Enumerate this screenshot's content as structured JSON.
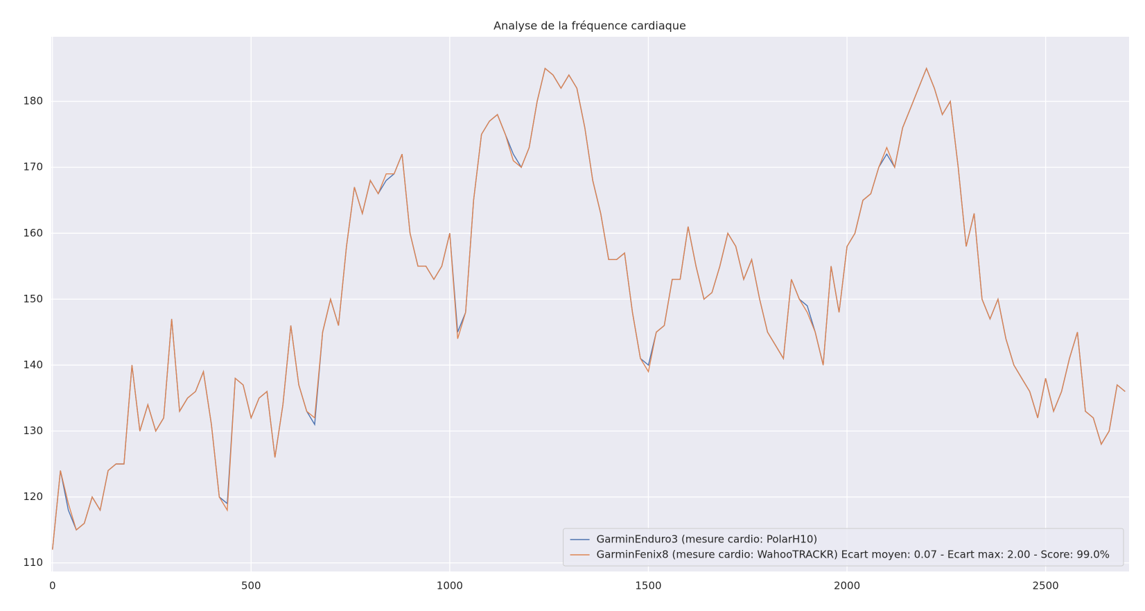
{
  "chart_data": {
    "type": "line",
    "title": "Analyse de la fréquence cardiaque",
    "x": [
      0,
      20,
      40,
      60,
      80,
      100,
      120,
      140,
      160,
      180,
      200,
      220,
      240,
      260,
      280,
      300,
      320,
      340,
      360,
      380,
      400,
      420,
      440,
      460,
      480,
      500,
      520,
      540,
      560,
      580,
      600,
      620,
      640,
      660,
      680,
      700,
      720,
      740,
      760,
      780,
      800,
      820,
      840,
      860,
      880,
      900,
      920,
      940,
      960,
      980,
      1000,
      1020,
      1040,
      1060,
      1080,
      1100,
      1120,
      1140,
      1160,
      1180,
      1200,
      1220,
      1240,
      1260,
      1280,
      1300,
      1320,
      1340,
      1360,
      1380,
      1400,
      1420,
      1440,
      1460,
      1480,
      1500,
      1520,
      1540,
      1560,
      1580,
      1600,
      1620,
      1640,
      1660,
      1680,
      1700,
      1720,
      1740,
      1760,
      1780,
      1800,
      1820,
      1840,
      1860,
      1880,
      1900,
      1920,
      1940,
      1960,
      1980,
      2000,
      2020,
      2040,
      2060,
      2080,
      2100,
      2120,
      2140,
      2160,
      2180,
      2200,
      2220,
      2240,
      2260,
      2280,
      2300,
      2320,
      2340,
      2360,
      2380,
      2400,
      2420,
      2440,
      2460,
      2480,
      2500,
      2520,
      2540,
      2560,
      2580,
      2600,
      2620,
      2640,
      2660,
      2680,
      2700
    ],
    "series": [
      {
        "name": "GarminEnduro3 (mesure cardio: PolarH10)",
        "color": "#4c72b0",
        "values": [
          112,
          124,
          118,
          115,
          116,
          120,
          118,
          124,
          125,
          125,
          140,
          130,
          134,
          130,
          132,
          147,
          133,
          135,
          136,
          139,
          131,
          120,
          119,
          138,
          137,
          132,
          135,
          136,
          126,
          134,
          146,
          137,
          133,
          131,
          145,
          150,
          146,
          158,
          167,
          163,
          168,
          166,
          168,
          169,
          172,
          160,
          155,
          155,
          153,
          155,
          160,
          145,
          148,
          165,
          175,
          177,
          178,
          175,
          172,
          170,
          173,
          180,
          185,
          184,
          182,
          184,
          182,
          176,
          168,
          163,
          156,
          156,
          157,
          148,
          141,
          140,
          145,
          146,
          153,
          153,
          161,
          155,
          150,
          151,
          155,
          160,
          158,
          153,
          156,
          150,
          145,
          143,
          141,
          153,
          150,
          149,
          145,
          140,
          155,
          148,
          158,
          160,
          165,
          166,
          170,
          172,
          170,
          176,
          179,
          182,
          185,
          182,
          178,
          180,
          170,
          158,
          163,
          150,
          147,
          150,
          144,
          140,
          138,
          136,
          132,
          138,
          133,
          136,
          141,
          145,
          133,
          132,
          128,
          130,
          137,
          136
        ]
      },
      {
        "name": "GarminFenix8 (mesure cardio: WahooTRACKR) Ecart moyen: 0.07 - Ecart max: 2.00 - Score: 99.0%",
        "color": "#dd8452",
        "values": [
          112,
          124,
          119,
          115,
          116,
          120,
          118,
          124,
          125,
          125,
          140,
          130,
          134,
          130,
          132,
          147,
          133,
          135,
          136,
          139,
          131,
          120,
          118,
          138,
          137,
          132,
          135,
          136,
          126,
          134,
          146,
          137,
          133,
          132,
          145,
          150,
          146,
          158,
          167,
          163,
          168,
          166,
          169,
          169,
          172,
          160,
          155,
          155,
          153,
          155,
          160,
          144,
          148,
          165,
          175,
          177,
          178,
          175,
          171,
          170,
          173,
          180,
          185,
          184,
          182,
          184,
          182,
          176,
          168,
          163,
          156,
          156,
          157,
          148,
          141,
          139,
          145,
          146,
          153,
          153,
          161,
          155,
          150,
          151,
          155,
          160,
          158,
          153,
          156,
          150,
          145,
          143,
          141,
          153,
          150,
          148,
          145,
          140,
          155,
          148,
          158,
          160,
          165,
          166,
          170,
          173,
          170,
          176,
          179,
          182,
          185,
          182,
          178,
          180,
          170,
          158,
          163,
          150,
          147,
          150,
          144,
          140,
          138,
          136,
          132,
          138,
          133,
          136,
          141,
          145,
          133,
          132,
          128,
          130,
          137,
          136
        ]
      }
    ],
    "xlim": [
      -3,
      2710
    ],
    "ylim": [
      108.7,
      189.8
    ],
    "xticks": [
      0,
      500,
      1000,
      1500,
      2000,
      2500
    ],
    "yticks": [
      110,
      120,
      130,
      140,
      150,
      160,
      170,
      180
    ],
    "grid": true,
    "legend": "lower right"
  }
}
